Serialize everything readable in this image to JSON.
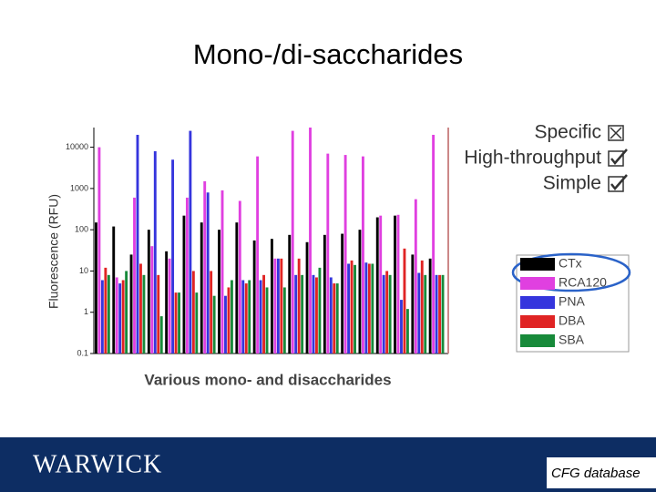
{
  "chart_data": {
    "type": "bar",
    "title": "Mono-/di-saccharides",
    "xlabel": "Various mono- and disaccharides",
    "ylabel": "Fluorescence (RFU)",
    "log": true,
    "legend": "right",
    "categories": [
      null,
      null,
      null,
      null,
      null,
      null,
      null,
      null,
      null,
      null,
      null,
      null,
      null,
      null,
      null,
      null,
      null,
      null,
      null,
      null
    ],
    "series": [
      {
        "name": "CTx",
        "color": "#000000",
        "values": [
          150,
          120,
          25,
          100,
          30,
          220,
          150,
          100,
          150,
          55,
          60,
          75,
          50,
          75,
          80,
          100,
          200,
          220,
          25,
          20
        ]
      },
      {
        "name": "RCA120",
        "color": "#e040e0",
        "values": [
          10000,
          7,
          600,
          40,
          20,
          600,
          1500,
          900,
          500,
          6000,
          20,
          25000,
          30000,
          7000,
          6500,
          6000,
          220,
          230,
          550,
          20000
        ]
      },
      {
        "name": "PNA",
        "color": "#3535dd",
        "values": [
          6,
          5,
          20000,
          8000,
          5000,
          25000,
          800,
          2.5,
          6,
          6,
          20,
          8,
          8,
          7,
          15,
          16,
          8,
          2,
          9,
          8
        ]
      },
      {
        "name": "DBA",
        "color": "#e02424",
        "values": [
          12,
          6,
          15,
          8,
          3,
          10,
          10,
          4,
          5,
          8,
          20,
          20,
          7,
          5,
          18,
          15,
          10,
          35,
          18,
          8
        ]
      },
      {
        "name": "SBA",
        "color": "#178a3a",
        "values": [
          8,
          10,
          8,
          0.8,
          3,
          3,
          2.5,
          6,
          6,
          4,
          4,
          8,
          12,
          5,
          14,
          15,
          8,
          1.2,
          8,
          8
        ]
      }
    ],
    "ylim": [
      0.1,
      30000
    ],
    "yticks": [
      0.1,
      1,
      10,
      100,
      1000,
      10000
    ]
  },
  "criteria": [
    {
      "label": "Specific",
      "mark": "cross"
    },
    {
      "label": "High-throughput",
      "mark": "check"
    },
    {
      "label": "Simple",
      "mark": "check"
    }
  ],
  "footer": {
    "logo": "WARWICK",
    "source": "CFG database"
  }
}
